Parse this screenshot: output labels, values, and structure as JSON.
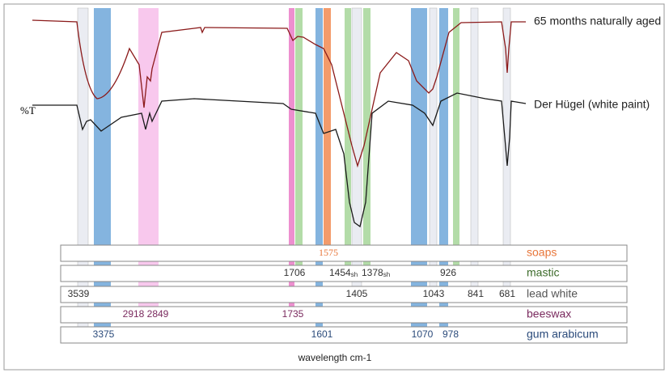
{
  "ylabel": "%T",
  "xlabel": "wavelength cm-1",
  "spectra": [
    {
      "label": "65 months naturally aged"
    },
    {
      "label": "Der Hügel (white paint)"
    }
  ],
  "rows": [
    {
      "name": "soaps",
      "peaks": [
        {
          "text": "1575"
        }
      ]
    },
    {
      "name": "mastic",
      "peaks": [
        {
          "text": "1706"
        },
        {
          "text": "1454",
          "sub": "sh"
        },
        {
          "text": "1378",
          "sub": "sh"
        },
        {
          "text": "926"
        }
      ]
    },
    {
      "name": "lead white",
      "peaks": [
        {
          "text": "3539"
        },
        {
          "text": "1405"
        },
        {
          "text": "1043"
        },
        {
          "text": "841"
        },
        {
          "text": "681"
        }
      ]
    },
    {
      "name": "beeswax",
      "peaks": [
        {
          "text": "2918"
        },
        {
          "text": "2849"
        },
        {
          "text": "1735"
        }
      ]
    },
    {
      "name": "gum arabicum",
      "peaks": [
        {
          "text": "3375"
        },
        {
          "text": "1601"
        },
        {
          "text": "1070"
        },
        {
          "text": "978"
        }
      ]
    }
  ]
}
